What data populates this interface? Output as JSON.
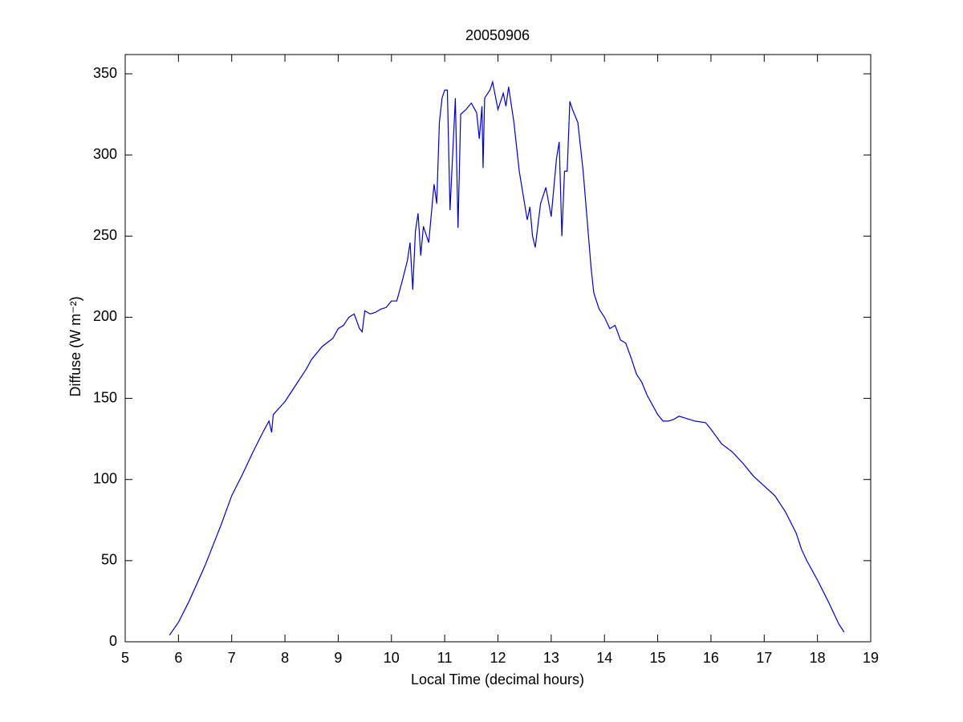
{
  "chart_data": {
    "type": "line",
    "title": "20050906",
    "xlabel": "Local Time (decimal hours)",
    "ylabel": "Diffuse (W m⁻²)",
    "xlim": [
      5,
      19
    ],
    "xticks": [
      5,
      6,
      7,
      8,
      9,
      10,
      11,
      12,
      13,
      14,
      15,
      16,
      17,
      18,
      19
    ],
    "ylim": [
      0,
      360
    ],
    "yticks": [
      0,
      50,
      100,
      150,
      200,
      250,
      300,
      350
    ],
    "grid": false,
    "series": [
      {
        "color": "#0000c8",
        "x": [
          5.83,
          6.0,
          6.2,
          6.5,
          6.8,
          7.0,
          7.2,
          7.4,
          7.6,
          7.7,
          7.75,
          7.78,
          8.0,
          8.2,
          8.4,
          8.5,
          8.7,
          8.9,
          9.0,
          9.1,
          9.2,
          9.3,
          9.4,
          9.45,
          9.5,
          9.6,
          9.7,
          9.8,
          9.9,
          10.0,
          10.1,
          10.2,
          10.3,
          10.35,
          10.4,
          10.45,
          10.5,
          10.55,
          10.6,
          10.7,
          10.8,
          10.85,
          10.9,
          10.95,
          11.0,
          11.05,
          11.1,
          11.2,
          11.25,
          11.3,
          11.4,
          11.5,
          11.6,
          11.65,
          11.7,
          11.72,
          11.75,
          11.85,
          11.9,
          12.0,
          12.1,
          12.15,
          12.2,
          12.3,
          12.4,
          12.5,
          12.55,
          12.6,
          12.65,
          12.7,
          12.8,
          12.9,
          13.0,
          13.1,
          13.15,
          13.2,
          13.25,
          13.3,
          13.35,
          13.4,
          13.5,
          13.6,
          13.7,
          13.75,
          13.8,
          13.9,
          14.0,
          14.1,
          14.2,
          14.3,
          14.4,
          14.5,
          14.6,
          14.7,
          14.8,
          14.9,
          15.0,
          15.1,
          15.2,
          15.3,
          15.4,
          15.5,
          15.7,
          15.9,
          16.0,
          16.2,
          16.4,
          16.6,
          16.8,
          17.0,
          17.2,
          17.4,
          17.6,
          17.7,
          17.8,
          18.0,
          18.2,
          18.4,
          18.5
        ],
        "values": [
          4,
          12,
          25,
          47,
          72,
          90,
          103,
          117,
          130,
          136,
          129,
          140,
          148,
          158,
          168,
          174,
          182,
          187,
          193,
          195,
          200,
          202,
          193,
          191,
          204,
          202,
          203,
          205,
          206,
          210,
          210,
          222,
          235,
          246,
          217,
          253,
          264,
          238,
          256,
          246,
          282,
          270,
          320,
          335,
          340,
          340,
          266,
          335,
          255,
          325,
          328,
          332,
          326,
          310,
          330,
          292,
          335,
          340,
          345,
          328,
          338,
          330,
          342,
          320,
          290,
          270,
          260,
          268,
          250,
          243,
          270,
          280,
          262,
          298,
          308,
          250,
          290,
          290,
          333,
          328,
          320,
          290,
          250,
          230,
          215,
          205,
          200,
          193,
          195,
          186,
          184,
          175,
          165,
          160,
          152,
          146,
          140,
          136,
          136,
          137,
          139,
          138,
          136,
          135,
          131,
          122,
          117,
          110,
          102,
          96,
          90,
          80,
          67,
          57,
          50,
          38,
          25,
          11,
          6
        ]
      }
    ]
  }
}
